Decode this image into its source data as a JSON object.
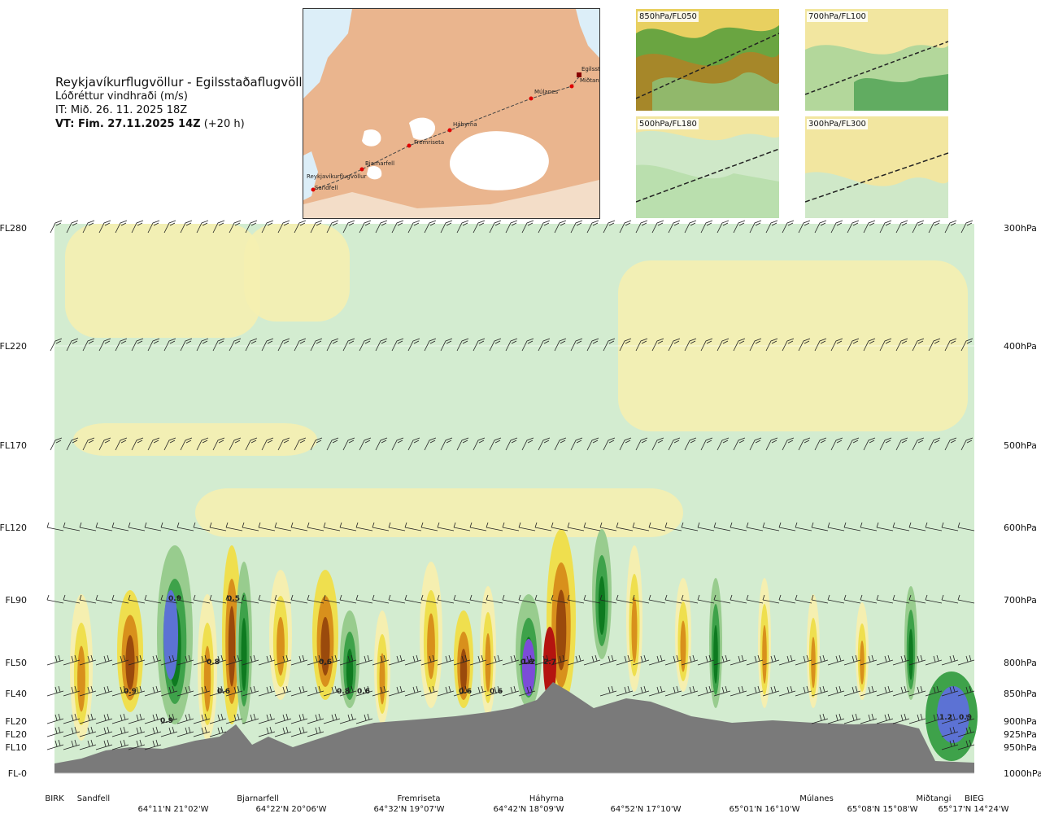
{
  "header": {
    "route": "Reykjavíkurflugvöllur - Egilsstaðaflugvöllur",
    "variable": "Lóðréttur vindhraði (m/s)",
    "issue_time": "IT: Mið. 26. 11. 2025 18Z",
    "valid_time": "VT: Fim. 27.11.2025 14Z",
    "lead": "(+20 h)"
  },
  "map": {
    "waypoints": [
      "Reykjavíkurflugvöllur",
      "Sandfell",
      "Bjarnarfell",
      "Fremriseta",
      "Háhyrna",
      "Múlanes",
      "Miðtangi",
      "Egilsstaðir"
    ],
    "colors": {
      "sea": "#dceef8",
      "land": "#eab58e",
      "ice": "#ffffff",
      "route": "#444444",
      "point": "#e00000"
    }
  },
  "mini_maps": [
    {
      "label": "850hPa/FL050"
    },
    {
      "label": "700hPa/FL100"
    },
    {
      "label": "500hPa/FL180"
    },
    {
      "label": "300hPa/FL300"
    }
  ],
  "chart_data": {
    "type": "heatmap",
    "title": "",
    "xlabel": "",
    "ylabel": "",
    "y_levels": [
      {
        "fl": "FL280",
        "hpa": "300hPa"
      },
      {
        "fl": "FL220",
        "hpa": "400hPa"
      },
      {
        "fl": "FL170",
        "hpa": "500hPa"
      },
      {
        "fl": "FL120",
        "hpa": "600hPa"
      },
      {
        "fl": "FL90",
        "hpa": "700hPa"
      },
      {
        "fl": "FL50",
        "hpa": "800hPa"
      },
      {
        "fl": "FL40",
        "hpa": "850hPa"
      },
      {
        "fl": "FL20",
        "hpa": "900hPa"
      },
      {
        "fl": "FL20",
        "hpa": "925hPa"
      },
      {
        "fl": "FL10",
        "hpa": "950hPa"
      },
      {
        "fl": "FL-0",
        "hpa": "1000hPa"
      }
    ],
    "waypoint_labels": [
      "BIRK",
      "Sandfell",
      "Bjarnarfell",
      "Fremriseta",
      "Háhyrna",
      "Múlanes",
      "Miðtangi",
      "BIEG"
    ],
    "coordinate_labels": [
      "64°11'N 21°02'W",
      "64°22'N 20°06'W",
      "64°32'N 19°07'W",
      "64°42'N 18°09'W",
      "64°52'N 17°10'W",
      "65°01'N 16°10'W",
      "65°08'N 15°08'W",
      "65°17'N 14°24'W"
    ],
    "value_labels": [
      "0.9",
      "0.9",
      "0.5",
      "0.9",
      "0.8",
      "0.6",
      "0.6",
      "0.8",
      "0.6",
      "0.6",
      "0.6",
      "0.6",
      "1.2",
      "2.7",
      "1.2",
      "0.9"
    ],
    "colors": {
      "light_green": "#d3ecd0",
      "pale_yellow": "#f5efb0",
      "yellow": "#efdf4e",
      "orange": "#d8901c",
      "brown": "#9a4a0c",
      "dark_red": "#b41410",
      "green": "#98cc8e",
      "mid_green": "#3ea24a",
      "dark_green": "#0e7a20",
      "blue": "#5c72d4",
      "purple": "#7c4cd8",
      "terrain": "#7a7a7a",
      "barb": "#222222"
    }
  }
}
